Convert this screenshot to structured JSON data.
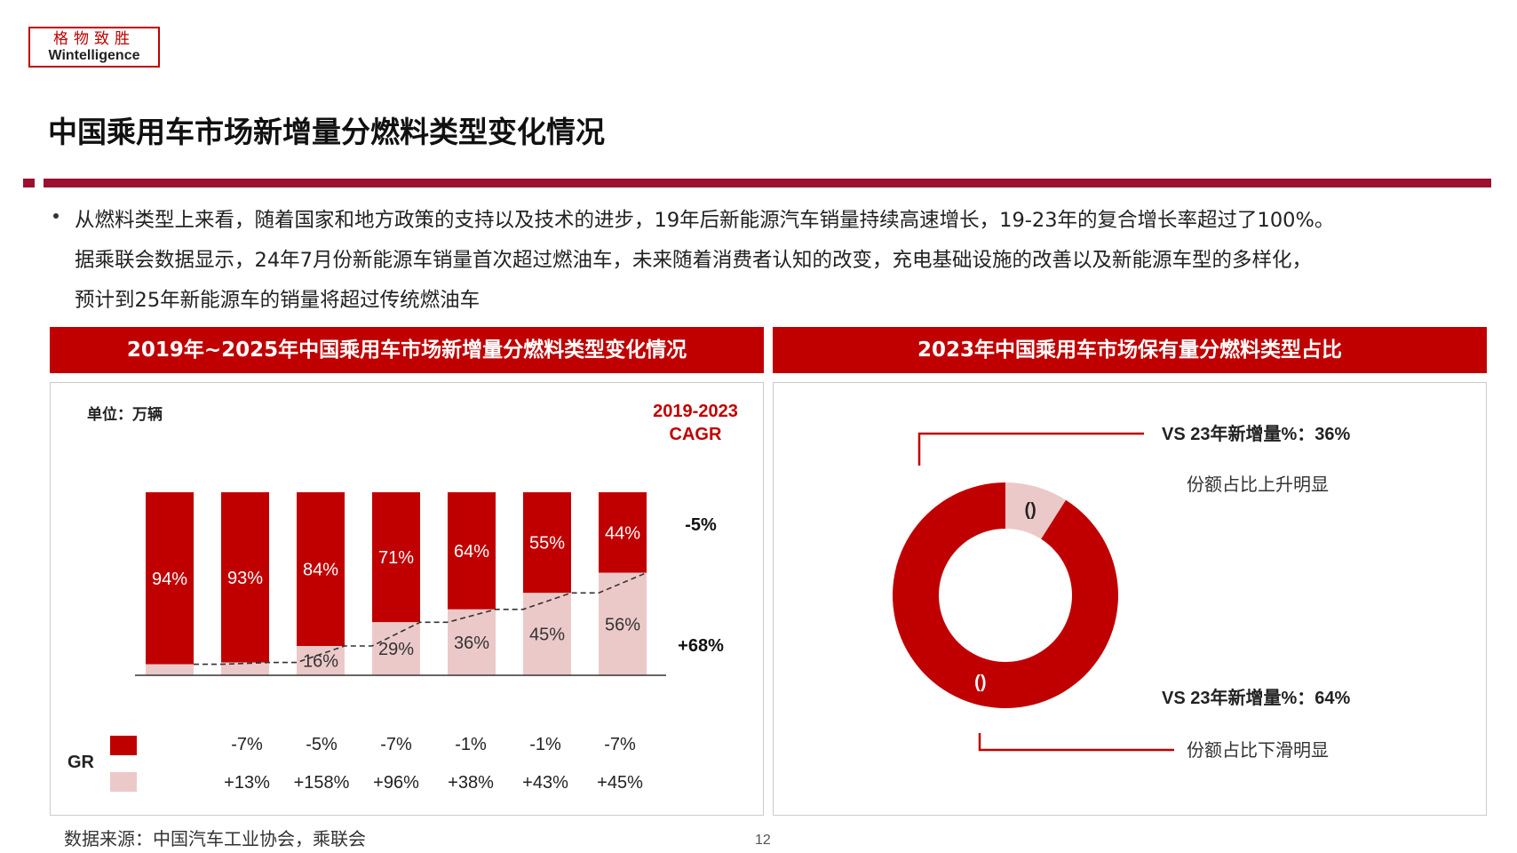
{
  "logo": {
    "chinese": "格物致胜",
    "english": "Wintelligence"
  },
  "page_title": "中国乘用车市场新增量分燃料类型变化情况",
  "bullet": {
    "line1": "从燃料类型上来看，随着国家和地方政策的支持以及技术的进步，19年后新能源汽车销量持续高速增长，19-23年的复合增长率超过了100%。",
    "line2": "据乘联会数据显示，24年7月份新能源车销量首次超过燃油车，未来随着消费者认知的改变，充电基础设施的改善以及新能源车型的多样化，",
    "line3": "预计到25年新能源车的销量将超过传统燃油车"
  },
  "left_panel": {
    "header": "2019年~2025年中国乘用车市场新增量分燃料类型变化情况",
    "unit": "单位：万辆",
    "cagr_title_line1": "2019-2023",
    "cagr_title_line2": "CAGR",
    "cagr_top": "-5%",
    "cagr_bottom": "+68%",
    "gr_label": "GR",
    "gr_top": [
      "-7%",
      "-5%",
      "-7%",
      "-1%",
      "-1%",
      "-7%"
    ],
    "gr_bottom": [
      "+13%",
      "+158%",
      "+96%",
      "+38%",
      "+43%",
      "+45%"
    ]
  },
  "right_panel": {
    "header": "2023年中国乘用车市场保有量分燃料类型占比",
    "top_title": "VS 23年新增量%：36%",
    "top_sub": "份额占比上升明显",
    "bottom_title": "VS 23年新增量%：64%",
    "bottom_sub": "份额占比下滑明显"
  },
  "colors": {
    "fuel": "#c00000",
    "nev": "#ecc9c9",
    "accent_bar": "#9b1030"
  },
  "chart_data": [
    {
      "type": "bar",
      "stacked": true,
      "normalized_percent": true,
      "categories": [
        "",
        "",
        "",
        "",
        "",
        "",
        ""
      ],
      "series": [
        {
          "values": [
            6,
            7,
            16,
            29,
            36,
            45,
            56
          ],
          "labels": [
            "",
            "",
            "16%",
            "29%",
            "36%",
            "45%",
            "56%"
          ],
          "color": "#ecc9c9"
        },
        {
          "values": [
            94,
            93,
            84,
            71,
            64,
            55,
            44
          ],
          "labels": [
            "94%",
            "93%",
            "84%",
            "71%",
            "64%",
            "55%",
            "44%"
          ],
          "color": "#c00000"
        }
      ],
      "ylim": [
        0,
        100
      ]
    },
    {
      "type": "pie",
      "donut": true,
      "slices": [
        {
          "value": 9,
          "label": "()",
          "color": "#ecc9c9"
        },
        {
          "value": 91,
          "label": "()",
          "color": "#c00000"
        }
      ]
    }
  ],
  "source": "数据来源：中国汽车工业协会，乘联会",
  "page_number": "12"
}
